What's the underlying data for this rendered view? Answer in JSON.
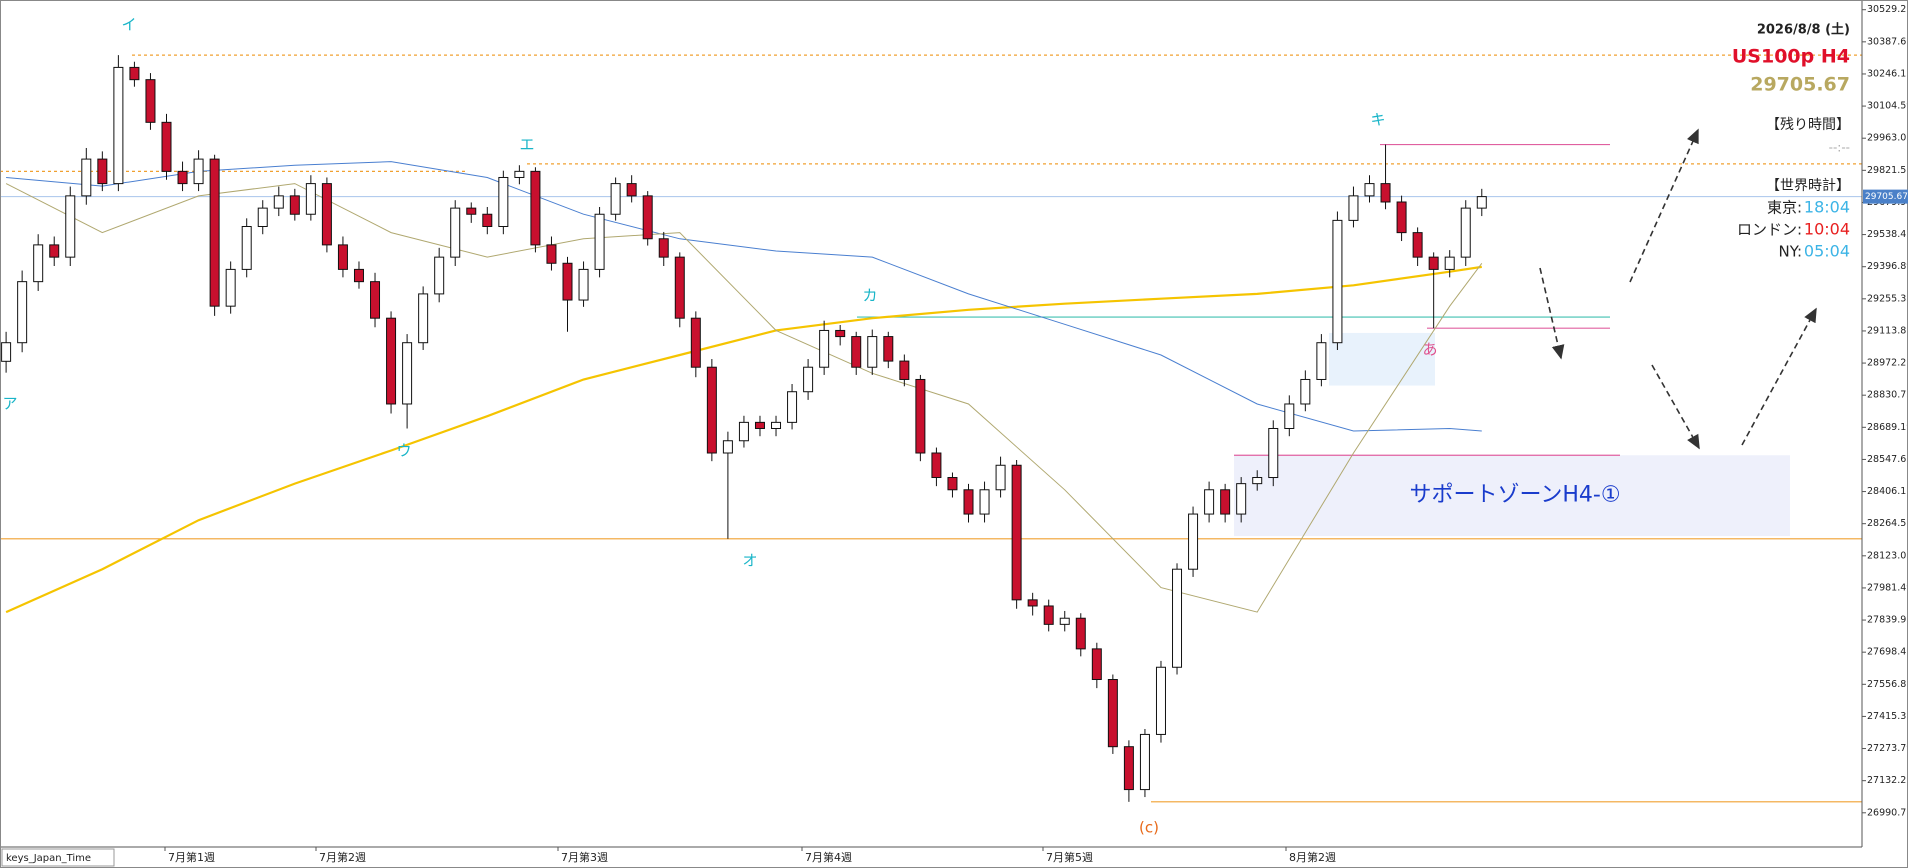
{
  "chart_data": {
    "type": "candlestick",
    "date": "2026/8/8 (土)",
    "symbol": "US100p H4",
    "indicator": "keys_Japan_Time",
    "categories": [
      "7月第1週",
      "7月第2週",
      "7月第3週",
      "7月第4週",
      "7月第5週",
      "8月第2週"
    ],
    "up_color": "#ffffff",
    "down_color": "#c8102e",
    "open": [
      28980,
      29062,
      29331,
      29493,
      29439,
      29709,
      29871,
      29763,
      30275,
      30221,
      30033,
      29817,
      29763,
      29871,
      29223,
      29385,
      29574,
      29655,
      29709,
      29628,
      29763,
      29493,
      29385,
      29331,
      29170,
      28792,
      29062,
      29277,
      29439,
      29655,
      29628,
      29574,
      29790,
      29817,
      29493,
      29412,
      29250,
      29385,
      29628,
      29763,
      29709,
      29520,
      29439,
      29170,
      28954,
      28576,
      28630,
      28711,
      28684,
      28711,
      28846,
      28954,
      29116,
      29089,
      28954,
      29089,
      28981,
      28900,
      28576,
      28468,
      28414,
      28307,
      28414,
      28522,
      27929,
      27902,
      27821,
      27848,
      27713,
      27578,
      27282,
      27093,
      27336,
      27632,
      28064,
      28307,
      28414,
      28307,
      28441,
      28468,
      28684,
      28792,
      28900,
      29062,
      29601,
      29709,
      29763,
      29682,
      29547,
      29439,
      29385,
      29439,
      29655
    ],
    "high": [
      29110,
      29380,
      29540,
      29530,
      29750,
      29920,
      29905,
      30329,
      30300,
      30250,
      30070,
      29860,
      29910,
      29890,
      29420,
      29610,
      29690,
      29750,
      29740,
      29800,
      29790,
      29530,
      29420,
      29370,
      29200,
      29100,
      29310,
      29480,
      29690,
      29680,
      29660,
      29820,
      29844,
      29835,
      29530,
      29440,
      29420,
      29660,
      29790,
      29800,
      29730,
      29550,
      29460,
      29200,
      28990,
      28670,
      28740,
      28740,
      28740,
      28880,
      28990,
      29159,
      29140,
      29110,
      29120,
      29110,
      29010,
      28920,
      28600,
      28490,
      28440,
      28450,
      28560,
      28545,
      27960,
      27930,
      27880,
      27870,
      27740,
      27600,
      27310,
      27360,
      27660,
      28090,
      28340,
      28450,
      28440,
      28470,
      28500,
      28720,
      28830,
      28940,
      29100,
      29640,
      29750,
      29800,
      29935,
      29710,
      29570,
      29460,
      29470,
      29690,
      29740
    ],
    "low": [
      28930,
      29020,
      29290,
      29400,
      29400,
      29670,
      29730,
      29730,
      30190,
      30000,
      29780,
      29730,
      29730,
      29180,
      29190,
      29350,
      29540,
      29620,
      29600,
      29600,
      29460,
      29350,
      29300,
      29130,
      28750,
      28684,
      29030,
      29240,
      29400,
      29590,
      29540,
      29540,
      29760,
      29460,
      29380,
      29110,
      29220,
      29350,
      29600,
      29680,
      29490,
      29400,
      29130,
      28910,
      28540,
      28198,
      28600,
      28650,
      28650,
      28680,
      28810,
      28920,
      29050,
      28920,
      28920,
      28950,
      28870,
      28540,
      28430,
      28380,
      28270,
      28270,
      28380,
      27890,
      27860,
      27790,
      27790,
      27680,
      27540,
      27250,
      27039,
      27060,
      27300,
      27600,
      28030,
      28270,
      28270,
      28270,
      28410,
      28430,
      28650,
      28760,
      28870,
      29030,
      29570,
      29680,
      29650,
      29510,
      29400,
      29126,
      29350,
      29400,
      29620
    ],
    "close": [
      29062,
      29331,
      29493,
      29439,
      29709,
      29871,
      29763,
      30275,
      30221,
      30033,
      29817,
      29763,
      29871,
      29223,
      29385,
      29574,
      29655,
      29709,
      29628,
      29763,
      29493,
      29385,
      29331,
      29170,
      28792,
      29062,
      29277,
      29439,
      29655,
      29628,
      29574,
      29790,
      29817,
      29493,
      29412,
      29250,
      29385,
      29628,
      29763,
      29709,
      29520,
      29439,
      29170,
      28954,
      28576,
      28630,
      28711,
      28684,
      28711,
      28846,
      28954,
      29116,
      29089,
      28954,
      29089,
      28981,
      28900,
      28576,
      28468,
      28414,
      28307,
      28414,
      28522,
      27929,
      27902,
      27821,
      27848,
      27713,
      27578,
      27282,
      27093,
      27336,
      27632,
      28064,
      28307,
      28414,
      28307,
      28441,
      28468,
      28684,
      28792,
      28900,
      29062,
      29601,
      29709,
      29763,
      29682,
      29547,
      29439,
      29385,
      29439,
      29655,
      29705.67
    ],
    "ylim": [
      26840,
      30572
    ],
    "yticks": [
      30529.21,
      30387.67,
      30246.13,
      30104.59,
      29963.05,
      29821.51,
      29679.97,
      29538.43,
      29396.89,
      29255.35,
      29113.81,
      28972.27,
      28830.73,
      28689.19,
      28547.65,
      28406.11,
      28264.57,
      28123.03,
      27981.49,
      27839.95,
      27698.41,
      27556.87,
      27415.33,
      27273.79,
      27132.25,
      26990.71
    ],
    "ma": [
      {
        "color": "#f5c400",
        "width": 2.2,
        "x": [
          0,
          6,
          12,
          18,
          24,
          30,
          36,
          42,
          48,
          54,
          60,
          66,
          72,
          78,
          84,
          90,
          92
        ],
        "values": [
          27875,
          28064,
          28280,
          28441,
          28587,
          28738,
          28900,
          29008,
          29116,
          29170,
          29207,
          29234,
          29256,
          29277,
          29315,
          29375,
          29396
        ]
      },
      {
        "color": "#4a7fd0",
        "width": 1,
        "x": [
          0,
          6,
          12,
          18,
          24,
          30,
          36,
          42,
          48,
          54,
          60,
          66,
          72,
          78,
          84,
          90,
          92
        ],
        "values": [
          29790,
          29752,
          29817,
          29844,
          29860,
          29790,
          29628,
          29520,
          29466,
          29439,
          29277,
          29143,
          29008,
          28792,
          28673,
          28684,
          28673
        ]
      },
      {
        "color": "#b0a870",
        "width": 1,
        "x": [
          0,
          6,
          12,
          18,
          24,
          30,
          36,
          42,
          48,
          54,
          60,
          66,
          72,
          78,
          84,
          90,
          92
        ],
        "values": [
          29763,
          29547,
          29709,
          29763,
          29547,
          29439,
          29520,
          29547,
          29116,
          28927,
          28792,
          28414,
          27983,
          27875,
          28576,
          29223,
          29412
        ]
      }
    ],
    "levels": [
      {
        "value": 30329,
        "color": "#f0a030",
        "dashed": true
      },
      {
        "value": 29817,
        "color": "#f0a030",
        "dashed": true
      },
      {
        "value": 29850,
        "color": "#f0a030",
        "dashed": true
      },
      {
        "value": 29935,
        "color": "#e060a0",
        "dashed": false
      },
      {
        "value": 29175,
        "color": "#40c0b0",
        "dashed": false
      },
      {
        "value": 29126,
        "color": "#e060a0",
        "dashed": false
      },
      {
        "value": 28566,
        "color": "#e060a0",
        "dashed": false
      },
      {
        "value": 28198,
        "color": "#f0a030",
        "dashed": false
      },
      {
        "value": 27039,
        "color": "#f0a030",
        "dashed": false
      }
    ],
    "zones": [
      {
        "top": 28566,
        "bottom": 28210,
        "color": "#eef0fb",
        "label": "サポートゾーンH4-①"
      },
      {
        "top": 29105,
        "bottom": 28873,
        "color": "#e8f2fc"
      }
    ],
    "annotations": [
      {
        "text": "ア",
        "color": "#19b5c8"
      },
      {
        "text": "イ",
        "color": "#19b5c8"
      },
      {
        "text": "ウ",
        "color": "#19b5c8"
      },
      {
        "text": "エ",
        "color": "#19b5c8"
      },
      {
        "text": "オ",
        "color": "#19b5c8"
      },
      {
        "text": "カ",
        "color": "#19b5c8"
      },
      {
        "text": "キ",
        "color": "#19b5c8"
      },
      {
        "text": "あ",
        "color": "#e0508c"
      },
      {
        "text": "(c)",
        "color": "#e86a1a"
      }
    ],
    "remaining_time": {
      "title": "【残り時間】",
      "value": "--:--"
    },
    "world_clock": {
      "title": "【世界時計】",
      "rows": [
        {
          "city": "東京:",
          "time": "18:04",
          "color": "#3cb4e6"
        },
        {
          "city": "ロンドン:",
          "time": "10:04",
          "color": "#e82020"
        },
        {
          "city": "NY:",
          "time": "05:04",
          "color": "#3cb4e6"
        }
      ]
    }
  }
}
